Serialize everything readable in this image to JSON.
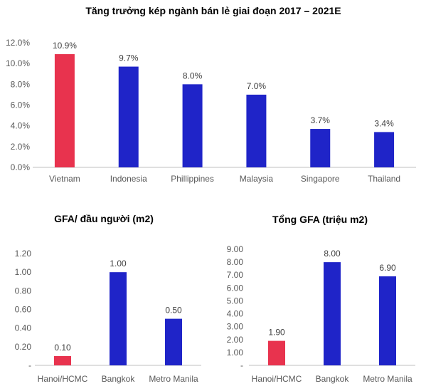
{
  "chart_data": [
    {
      "type": "bar",
      "title": "Tăng trưởng kép ngành bán lẻ giai đoạn 2017 – 2021E",
      "categories": [
        "Vietnam",
        "Indonesia",
        "Phillippines",
        "Malaysia",
        "Singapore",
        "Thailand"
      ],
      "values": [
        10.9,
        9.7,
        8.0,
        7.0,
        3.7,
        3.4
      ],
      "data_labels": [
        "10.9%",
        "9.7%",
        "8.0%",
        "7.0%",
        "3.7%",
        "3.4%"
      ],
      "y_ticks": [
        "0.0%",
        "2.0%",
        "4.0%",
        "6.0%",
        "8.0%",
        "10.0%",
        "12.0%"
      ],
      "ylim": [
        0,
        12
      ],
      "highlight_index": 0,
      "grid": false,
      "legend": "none"
    },
    {
      "type": "bar",
      "title": "GFA/ đầu người (m2)",
      "categories": [
        "Hanoi/HCMC",
        "Bangkok",
        "Metro Manila"
      ],
      "values": [
        0.1,
        1.0,
        0.5
      ],
      "data_labels": [
        "0.10",
        "1.00",
        "0.50"
      ],
      "y_ticks": [
        "-",
        "0.20",
        "0.40",
        "0.60",
        "0.80",
        "1.00",
        "1.20"
      ],
      "ylim": [
        0,
        1.2
      ],
      "highlight_index": 0,
      "grid": false,
      "legend": "none"
    },
    {
      "type": "bar",
      "title": "Tổng GFA (triệu m2)",
      "categories": [
        "Hanoi/HCMC",
        "Bangkok",
        "Metro Manila"
      ],
      "values": [
        1.9,
        8.0,
        6.9
      ],
      "data_labels": [
        "1.90",
        "8.00",
        "6.90"
      ],
      "y_ticks": [
        "-",
        "1.00",
        "2.00",
        "3.00",
        "4.00",
        "5.00",
        "6.00",
        "7.00",
        "8.00",
        "9.00"
      ],
      "ylim": [
        0,
        9
      ],
      "highlight_index": 0,
      "grid": false,
      "legend": "none"
    }
  ],
  "colors": {
    "highlight": "#E8334E",
    "bar": "#1F24C8",
    "axis": "#BFBFBF"
  }
}
